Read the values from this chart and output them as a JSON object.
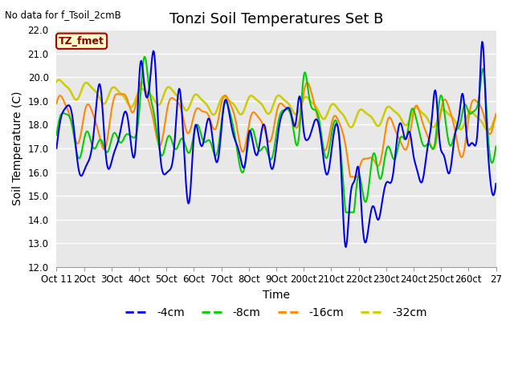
{
  "title": "Tonzi Soil Temperatures Set B",
  "no_data_text": "No data for f_Tsoil_2cmB",
  "annotation_text": "TZ_fmet",
  "xlabel": "Time",
  "ylabel": "Soil Temperature (C)",
  "ylim": [
    12.0,
    22.0
  ],
  "yticks": [
    12.0,
    13.0,
    14.0,
    15.0,
    16.0,
    17.0,
    18.0,
    19.0,
    20.0,
    21.0,
    22.0
  ],
  "xtick_labels": [
    "Oct 11",
    "2Oct",
    "3Oct",
    "4Oct",
    "5Oct",
    "6Oct",
    "7Oct",
    "8Oct",
    "9Oct",
    "200ct",
    "210ct",
    "220ct",
    "230ct",
    "240ct",
    "250ct",
    "260ct",
    "27"
  ],
  "color_4cm": "#0000EE",
  "color_8cm": "#00CC00",
  "color_16cm": "#FF8800",
  "color_32cm": "#CCCC00",
  "legend_labels": [
    "-4cm",
    "-8cm",
    "-16cm",
    "-32cm"
  ],
  "bg_color": "#E8E8E8",
  "annotation_bg": "#FFFFCC",
  "annotation_border": "#AA0000",
  "annotation_text_color": "#880000",
  "title_fontsize": 13,
  "label_fontsize": 10,
  "tick_fontsize": 8.5
}
